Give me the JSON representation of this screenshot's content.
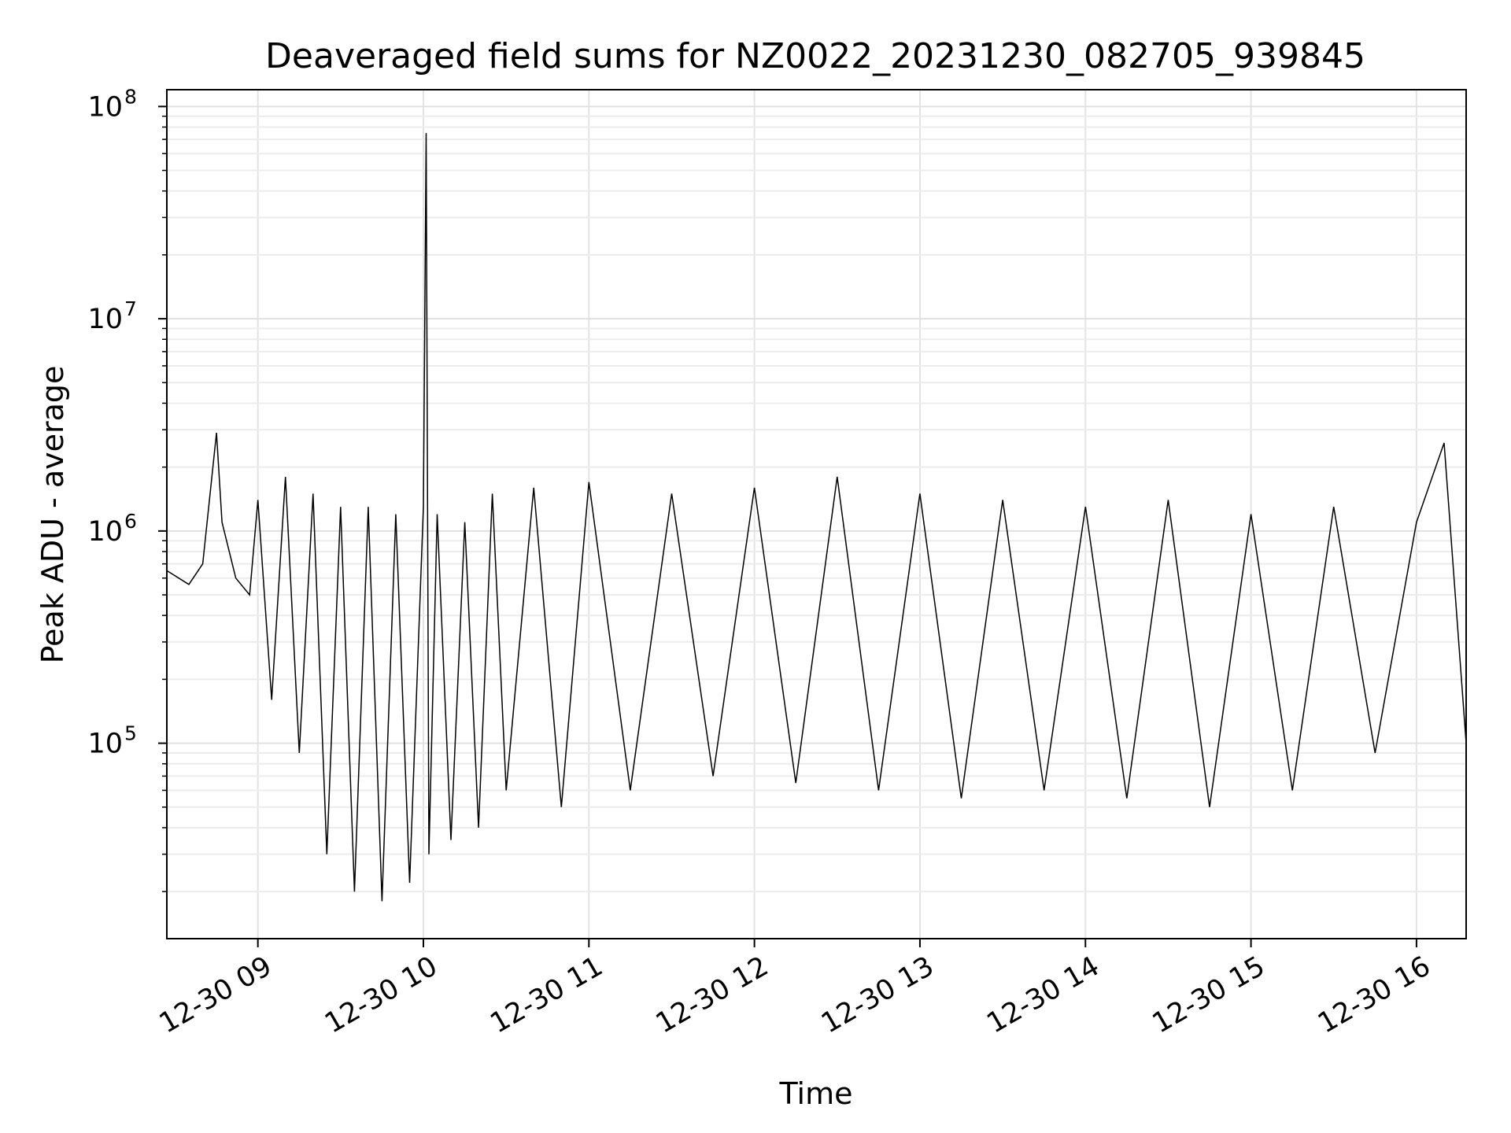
{
  "chart_data": {
    "type": "line",
    "title": "Deaveraged field sums for NZ0022_20231230_082705_939845",
    "xlabel": "Time",
    "ylabel": "Peak ADU - average",
    "yscale": "log",
    "ylim": [
      12000,
      120000000
    ],
    "y_ticks": [
      {
        "base": "10",
        "exp": "5",
        "value": 100000
      },
      {
        "base": "10",
        "exp": "6",
        "value": 1000000
      },
      {
        "base": "10",
        "exp": "7",
        "value": 10000000
      },
      {
        "base": "10",
        "exp": "8",
        "value": 100000000
      }
    ],
    "xlim": [
      "2023-12-30 08:27",
      "2023-12-30 16:18"
    ],
    "x_ticks": [
      {
        "label": "12-30 09",
        "time": "2023-12-30 09:00"
      },
      {
        "label": "12-30 10",
        "time": "2023-12-30 10:00"
      },
      {
        "label": "12-30 11",
        "time": "2023-12-30 11:00"
      },
      {
        "label": "12-30 12",
        "time": "2023-12-30 12:00"
      },
      {
        "label": "12-30 13",
        "time": "2023-12-30 13:00"
      },
      {
        "label": "12-30 14",
        "time": "2023-12-30 14:00"
      },
      {
        "label": "12-30 15",
        "time": "2023-12-30 15:00"
      },
      {
        "label": "12-30 16",
        "time": "2023-12-30 16:00"
      }
    ],
    "grid": true,
    "series": [
      {
        "color": "#000000",
        "x": [
          "2023-12-30 08:27",
          "2023-12-30 08:35",
          "2023-12-30 08:40",
          "2023-12-30 08:45",
          "2023-12-30 08:47",
          "2023-12-30 08:52",
          "2023-12-30 08:57",
          "2023-12-30 09:00",
          "2023-12-30 09:05",
          "2023-12-30 09:10",
          "2023-12-30 09:15",
          "2023-12-30 09:20",
          "2023-12-30 09:25",
          "2023-12-30 09:30",
          "2023-12-30 09:35",
          "2023-12-30 09:40",
          "2023-12-30 09:45",
          "2023-12-30 09:50",
          "2023-12-30 09:55",
          "2023-12-30 10:00",
          "2023-12-30 10:01",
          "2023-12-30 10:02",
          "2023-12-30 10:05",
          "2023-12-30 10:10",
          "2023-12-30 10:15",
          "2023-12-30 10:20",
          "2023-12-30 10:25",
          "2023-12-30 10:30",
          "2023-12-30 10:40",
          "2023-12-30 10:50",
          "2023-12-30 11:00",
          "2023-12-30 11:15",
          "2023-12-30 11:30",
          "2023-12-30 11:45",
          "2023-12-30 12:00",
          "2023-12-30 12:15",
          "2023-12-30 12:30",
          "2023-12-30 12:45",
          "2023-12-30 13:00",
          "2023-12-30 13:15",
          "2023-12-30 13:30",
          "2023-12-30 13:45",
          "2023-12-30 14:00",
          "2023-12-30 14:15",
          "2023-12-30 14:30",
          "2023-12-30 14:45",
          "2023-12-30 15:00",
          "2023-12-30 15:15",
          "2023-12-30 15:30",
          "2023-12-30 15:45",
          "2023-12-30 16:00",
          "2023-12-30 16:10",
          "2023-12-30 16:18"
        ],
        "y": [
          650000,
          560000,
          700000,
          2900000,
          1100000,
          600000,
          500000,
          1400000,
          160000,
          1800000,
          90000,
          1500000,
          30000,
          1300000,
          20000,
          1300000,
          18000,
          1200000,
          22000,
          1300000,
          75000000,
          30000,
          1200000,
          35000,
          1100000,
          40000,
          1500000,
          60000,
          1600000,
          50000,
          1700000,
          60000,
          1500000,
          70000,
          1600000,
          65000,
          1800000,
          60000,
          1500000,
          55000,
          1400000,
          60000,
          1300000,
          55000,
          1400000,
          50000,
          1200000,
          60000,
          1300000,
          90000,
          1100000,
          2600000,
          100000
        ]
      }
    ]
  }
}
